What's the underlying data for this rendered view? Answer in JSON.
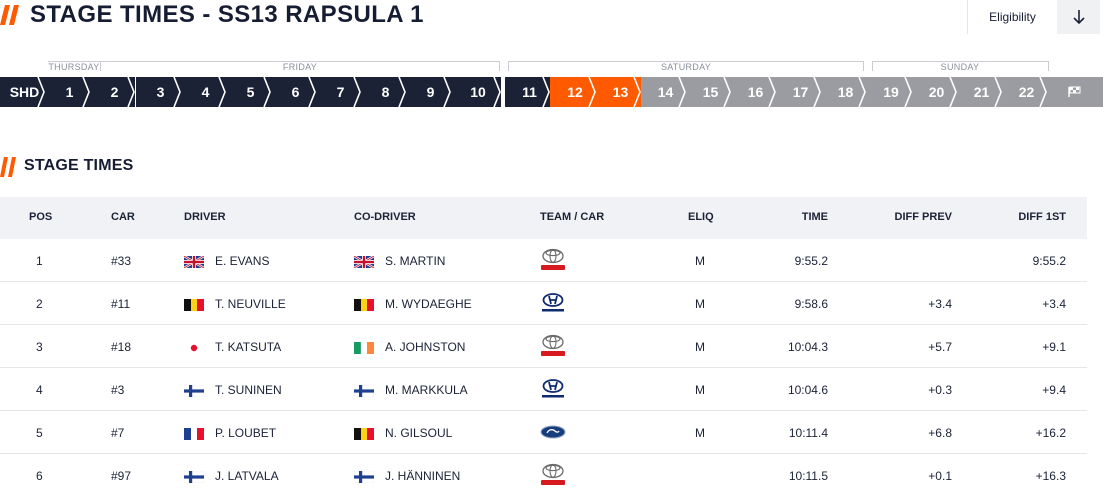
{
  "page": {
    "title": "STAGE TIMES - SS13 RAPSULA 1",
    "eligibility_label": "Eligibility",
    "accent_color": "#ff5a00",
    "nav_color": "#1b2236"
  },
  "days": [
    {
      "label": "THURSDAY"
    },
    {
      "label": "FRIDAY"
    },
    {
      "label": "SATURDAY"
    },
    {
      "label": "SUNDAY"
    }
  ],
  "stages": [
    {
      "label": "SHD",
      "state": "done"
    },
    {
      "label": "1",
      "state": "done"
    },
    {
      "label": "2",
      "state": "done"
    },
    {
      "label": "3",
      "state": "done"
    },
    {
      "label": "4",
      "state": "done"
    },
    {
      "label": "5",
      "state": "done"
    },
    {
      "label": "6",
      "state": "done"
    },
    {
      "label": "7",
      "state": "done"
    },
    {
      "label": "8",
      "state": "done"
    },
    {
      "label": "9",
      "state": "done"
    },
    {
      "label": "10",
      "state": "done"
    },
    {
      "label": "11",
      "state": "done"
    },
    {
      "label": "12",
      "state": "active"
    },
    {
      "label": "13",
      "state": "active"
    },
    {
      "label": "14",
      "state": "upcoming"
    },
    {
      "label": "15",
      "state": "upcoming"
    },
    {
      "label": "16",
      "state": "upcoming"
    },
    {
      "label": "17",
      "state": "upcoming"
    },
    {
      "label": "18",
      "state": "upcoming"
    },
    {
      "label": "19",
      "state": "upcoming"
    },
    {
      "label": "20",
      "state": "upcoming"
    },
    {
      "label": "21",
      "state": "upcoming"
    },
    {
      "label": "22",
      "state": "upcoming"
    },
    {
      "label": "",
      "state": "finish",
      "icon": "finish-flag-icon"
    }
  ],
  "section": {
    "title": "STAGE TIMES"
  },
  "table": {
    "headers": {
      "pos": "POS",
      "car": "CAR",
      "driver": "DRIVER",
      "codriver": "CO-DRIVER",
      "team": "TEAM / CAR",
      "eliq": "ELIQ",
      "time": "TIME",
      "diff_prev": "DIFF PREV",
      "diff_first": "DIFF 1ST"
    },
    "rows": [
      {
        "pos": "1",
        "car": "#33",
        "driver": "E. EVANS",
        "driver_flag": "gb-flag-icon",
        "codriver": "S. MARTIN",
        "codriver_flag": "gb-flag-icon",
        "team": "toyota-logo",
        "eliq": "M",
        "time": "9:55.2",
        "diff_prev": "",
        "diff_first": "9:55.2"
      },
      {
        "pos": "2",
        "car": "#11",
        "driver": "T. NEUVILLE",
        "driver_flag": "be-flag-icon",
        "codriver": "M. WYDAEGHE",
        "codriver_flag": "be-flag-icon",
        "team": "hyundai-logo",
        "eliq": "M",
        "time": "9:58.6",
        "diff_prev": "+3.4",
        "diff_first": "+3.4"
      },
      {
        "pos": "3",
        "car": "#18",
        "driver": "T. KATSUTA",
        "driver_flag": "jp-flag-icon",
        "codriver": "A. JOHNSTON",
        "codriver_flag": "ie-flag-icon",
        "team": "toyota-logo",
        "eliq": "M",
        "time": "10:04.3",
        "diff_prev": "+5.7",
        "diff_first": "+9.1"
      },
      {
        "pos": "4",
        "car": "#3",
        "driver": "T. SUNINEN",
        "driver_flag": "fi-flag-icon",
        "codriver": "M. MARKKULA",
        "codriver_flag": "fi-flag-icon",
        "team": "hyundai-logo",
        "eliq": "M",
        "time": "10:04.6",
        "diff_prev": "+0.3",
        "diff_first": "+9.4"
      },
      {
        "pos": "5",
        "car": "#7",
        "driver": "P. LOUBET",
        "driver_flag": "fr-flag-icon",
        "codriver": "N. GILSOUL",
        "codriver_flag": "be-flag-icon",
        "team": "ford-logo",
        "eliq": "M",
        "time": "10:11.4",
        "diff_prev": "+6.8",
        "diff_first": "+16.2"
      },
      {
        "pos": "6",
        "car": "#97",
        "driver": "J. LATVALA",
        "driver_flag": "fi-flag-icon",
        "codriver": "J. HÄNNINEN",
        "codriver_flag": "fi-flag-icon",
        "team": "toyota-logo",
        "eliq": "",
        "time": "10:11.5",
        "diff_prev": "+0.1",
        "diff_first": "+16.3"
      }
    ]
  }
}
